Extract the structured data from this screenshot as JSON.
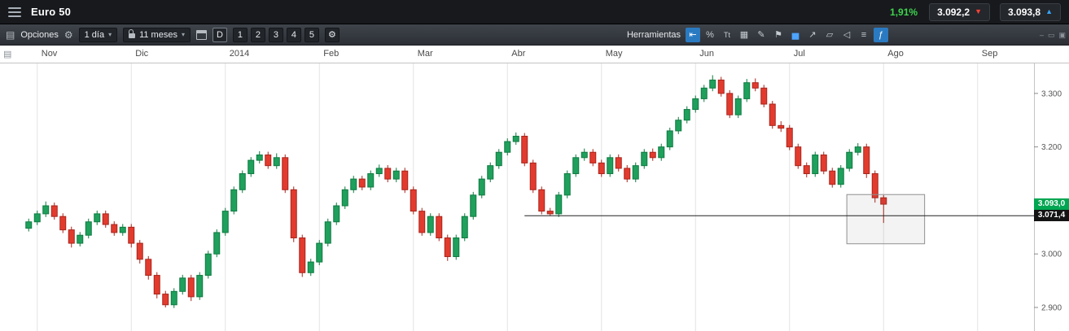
{
  "top_bar": {
    "title": "Euro 50",
    "change_percent": "1,91%",
    "sell": {
      "price": "3.092,2"
    },
    "buy": {
      "price": "3.093,8"
    }
  },
  "icons": {
    "menu_panel": "▤",
    "gear": "⚙",
    "caret": "▾",
    "sell_arrow": "▼",
    "buy_arrow": "▲",
    "chart_corner": "▤"
  },
  "toolbar": {
    "options_label": "Opciones",
    "timeframe_value": "1 día",
    "range_value": "11 meses",
    "view_mode_label": "D",
    "layout_presets": [
      "1",
      "2",
      "3",
      "4",
      "5"
    ],
    "tools_label": "Herramientas",
    "tools": [
      {
        "name": "cursor-tool",
        "glyph": "⇤",
        "active": true
      },
      {
        "name": "percent-tool",
        "glyph": "%",
        "active": false
      },
      {
        "name": "text-tool",
        "glyph": "Tt",
        "active": false
      },
      {
        "name": "grid-tool",
        "glyph": "▦",
        "active": false
      },
      {
        "name": "draw-tool",
        "glyph": "✎",
        "active": false
      },
      {
        "name": "flag-tool",
        "glyph": "⚑",
        "active": false
      },
      {
        "name": "bar-chart-tool",
        "glyph": "▅",
        "active": false,
        "color": "#4da3ff"
      },
      {
        "name": "trendline-tool",
        "glyph": "↗",
        "active": false
      },
      {
        "name": "eraser-tool",
        "glyph": "▱",
        "active": false
      },
      {
        "name": "back-tool",
        "glyph": "◁",
        "active": false
      },
      {
        "name": "lines-tool",
        "glyph": "≡",
        "active": false
      },
      {
        "name": "indicators-tool",
        "glyph": "ƒ",
        "active": true
      }
    ],
    "window_icons": [
      {
        "name": "minimize",
        "glyph": "–"
      },
      {
        "name": "restore",
        "glyph": "▭"
      },
      {
        "name": "maximize",
        "glyph": "▣"
      }
    ]
  },
  "chart_data": {
    "type": "candlestick",
    "instrument": "Euro 50",
    "timeframe": "1 día",
    "x_axis": {
      "labels": [
        "Nov",
        "Dic",
        "2014",
        "Feb",
        "Mar",
        "Abr",
        "May",
        "Jun",
        "Jul",
        "Ago",
        "Sep"
      ],
      "candles_per_month": 11
    },
    "y_axis": {
      "min": 2856,
      "max": 3356,
      "ticks": [
        {
          "label": "3.300",
          "value": 3300
        },
        {
          "label": "3.200",
          "value": 3200
        },
        {
          "label": "3.000",
          "value": 3000
        },
        {
          "label": "2.900",
          "value": 2900
        }
      ]
    },
    "candles": [
      [
        3048,
        3066,
        3042,
        3060
      ],
      [
        3060,
        3081,
        3054,
        3075
      ],
      [
        3075,
        3098,
        3069,
        3090
      ],
      [
        3090,
        3096,
        3064,
        3070
      ],
      [
        3070,
        3076,
        3039,
        3045
      ],
      [
        3045,
        3051,
        3012,
        3020
      ],
      [
        3020,
        3041,
        3014,
        3035
      ],
      [
        3035,
        3066,
        3029,
        3060
      ],
      [
        3060,
        3081,
        3054,
        3075
      ],
      [
        3075,
        3081,
        3049,
        3055
      ],
      [
        3055,
        3061,
        3034,
        3040
      ],
      [
        3040,
        3056,
        3034,
        3050
      ],
      [
        3050,
        3056,
        3012,
        3020
      ],
      [
        3020,
        3026,
        2982,
        2990
      ],
      [
        2990,
        2996,
        2952,
        2960
      ],
      [
        2960,
        2966,
        2917,
        2925
      ],
      [
        2925,
        2931,
        2900,
        2905
      ],
      [
        2905,
        2936,
        2899,
        2930
      ],
      [
        2930,
        2961,
        2924,
        2955
      ],
      [
        2955,
        2961,
        2912,
        2920
      ],
      [
        2920,
        2966,
        2914,
        2960
      ],
      [
        2960,
        3006,
        2954,
        3000
      ],
      [
        3000,
        3046,
        2994,
        3040
      ],
      [
        3040,
        3086,
        3034,
        3080
      ],
      [
        3080,
        3126,
        3074,
        3120
      ],
      [
        3120,
        3156,
        3114,
        3150
      ],
      [
        3150,
        3181,
        3144,
        3175
      ],
      [
        3175,
        3192,
        3169,
        3185
      ],
      [
        3185,
        3191,
        3159,
        3165
      ],
      [
        3165,
        3188,
        3159,
        3180
      ],
      [
        3180,
        3186,
        3114,
        3120
      ],
      [
        3120,
        3126,
        3022,
        3030
      ],
      [
        3030,
        3036,
        2957,
        2965
      ],
      [
        2965,
        2991,
        2959,
        2985
      ],
      [
        2985,
        3026,
        2979,
        3020
      ],
      [
        3020,
        3066,
        3014,
        3060
      ],
      [
        3060,
        3096,
        3054,
        3090
      ],
      [
        3090,
        3126,
        3084,
        3120
      ],
      [
        3120,
        3146,
        3114,
        3140
      ],
      [
        3140,
        3146,
        3119,
        3125
      ],
      [
        3125,
        3156,
        3119,
        3150
      ],
      [
        3150,
        3167,
        3144,
        3160
      ],
      [
        3160,
        3166,
        3134,
        3140
      ],
      [
        3140,
        3161,
        3134,
        3155
      ],
      [
        3155,
        3161,
        3114,
        3120
      ],
      [
        3120,
        3126,
        3074,
        3080
      ],
      [
        3080,
        3086,
        3034,
        3040
      ],
      [
        3040,
        3076,
        3034,
        3070
      ],
      [
        3070,
        3076,
        3024,
        3030
      ],
      [
        3030,
        3036,
        2987,
        2995
      ],
      [
        2995,
        3036,
        2989,
        3030
      ],
      [
        3030,
        3076,
        3024,
        3070
      ],
      [
        3070,
        3116,
        3064,
        3110
      ],
      [
        3110,
        3146,
        3104,
        3140
      ],
      [
        3140,
        3171,
        3134,
        3165
      ],
      [
        3165,
        3196,
        3159,
        3190
      ],
      [
        3190,
        3216,
        3184,
        3210
      ],
      [
        3210,
        3227,
        3204,
        3220
      ],
      [
        3220,
        3226,
        3164,
        3170
      ],
      [
        3170,
        3176,
        3114,
        3120
      ],
      [
        3120,
        3126,
        3074,
        3080
      ],
      [
        3080,
        3086,
        3071,
        3075
      ],
      [
        3075,
        3116,
        3069,
        3110
      ],
      [
        3110,
        3156,
        3104,
        3150
      ],
      [
        3150,
        3186,
        3144,
        3180
      ],
      [
        3180,
        3197,
        3174,
        3190
      ],
      [
        3190,
        3196,
        3164,
        3170
      ],
      [
        3170,
        3176,
        3144,
        3150
      ],
      [
        3150,
        3186,
        3144,
        3180
      ],
      [
        3180,
        3186,
        3154,
        3160
      ],
      [
        3160,
        3166,
        3134,
        3140
      ],
      [
        3140,
        3171,
        3134,
        3165
      ],
      [
        3165,
        3196,
        3159,
        3190
      ],
      [
        3190,
        3197,
        3174,
        3180
      ],
      [
        3180,
        3206,
        3174,
        3200
      ],
      [
        3200,
        3236,
        3194,
        3230
      ],
      [
        3230,
        3256,
        3224,
        3250
      ],
      [
        3250,
        3276,
        3244,
        3270
      ],
      [
        3270,
        3296,
        3264,
        3290
      ],
      [
        3290,
        3316,
        3284,
        3310
      ],
      [
        3310,
        3334,
        3304,
        3325
      ],
      [
        3325,
        3331,
        3294,
        3300
      ],
      [
        3300,
        3306,
        3254,
        3260
      ],
      [
        3260,
        3296,
        3254,
        3290
      ],
      [
        3290,
        3327,
        3284,
        3320
      ],
      [
        3320,
        3328,
        3304,
        3310
      ],
      [
        3310,
        3316,
        3274,
        3280
      ],
      [
        3280,
        3286,
        3234,
        3240
      ],
      [
        3240,
        3248,
        3228,
        3235
      ],
      [
        3235,
        3241,
        3194,
        3200
      ],
      [
        3200,
        3206,
        3159,
        3165
      ],
      [
        3165,
        3171,
        3143,
        3150
      ],
      [
        3150,
        3191,
        3144,
        3185
      ],
      [
        3185,
        3191,
        3149,
        3155
      ],
      [
        3155,
        3161,
        3124,
        3130
      ],
      [
        3130,
        3166,
        3124,
        3160
      ],
      [
        3160,
        3196,
        3154,
        3190
      ],
      [
        3190,
        3207,
        3184,
        3200
      ],
      [
        3200,
        3206,
        3142,
        3150
      ],
      [
        3150,
        3156,
        3096,
        3105
      ],
      [
        3105,
        3110,
        3058,
        3093
      ]
    ],
    "annotations": {
      "support_line": {
        "price": 3071.4,
        "label": "3.071,4",
        "start_index": 58
      },
      "current_price": {
        "price": 3093.0,
        "label": "3.093,0"
      },
      "rectangle": {
        "start_index": 95.7,
        "end_index": 104.8,
        "top_price": 3111,
        "bottom_price": 3019
      }
    },
    "colors": {
      "up": "#1fa05c",
      "up_border": "#0e7a40",
      "down": "#e23b2e",
      "down_border": "#a8241b",
      "grid": "#e4e4e4",
      "axis_text": "#555555",
      "current_badge": "#00a651",
      "line_badge": "#141414"
    }
  }
}
